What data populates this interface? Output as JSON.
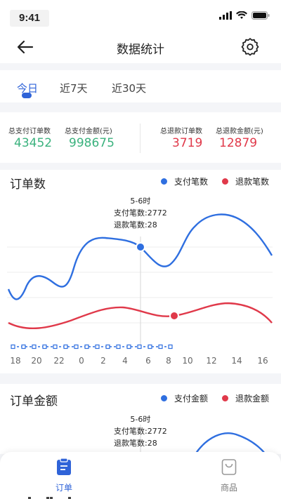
{
  "status_bar": {
    "time": "9:41"
  },
  "header": {
    "title": "数据统计"
  },
  "tabs": [
    {
      "label": "今日",
      "active": true
    },
    {
      "label": "近7天",
      "active": false
    },
    {
      "label": "近30天",
      "active": false
    }
  ],
  "summary": [
    {
      "label": "总支付订单数",
      "value": "43452",
      "color": "green"
    },
    {
      "label": "总支付金额(元)",
      "value": "998675",
      "color": "green"
    },
    {
      "label": "总退款订单数",
      "value": "3719",
      "color": "red"
    },
    {
      "label": "总退款金额(元)",
      "value": "12879",
      "color": "red"
    }
  ],
  "order_chart": {
    "title": "订单数",
    "legend": [
      {
        "label": "支付笔数",
        "color": "#2f6fe0"
      },
      {
        "label": "退款笔数",
        "color": "#e0394a"
      }
    ],
    "tooltip": {
      "time": "5-6时",
      "line1": "支付笔数:2772",
      "line2": "退款笔数:28"
    },
    "x_ticks": [
      "18",
      "20",
      "22",
      "0",
      "2",
      "4",
      "6",
      "8",
      "10",
      "12",
      "14",
      "16"
    ]
  },
  "amount_chart": {
    "title": "订单金额",
    "legend": [
      {
        "label": "支付金额",
        "color": "#2f6fe0"
      },
      {
        "label": "退款金额",
        "color": "#e0394a"
      }
    ],
    "tooltip": {
      "time": "5-6时",
      "line1": "支付笔数:2772",
      "line2": "退款笔数:28"
    }
  },
  "bottom_nav": [
    {
      "label": "订单",
      "active": true
    },
    {
      "label": "商品",
      "active": false
    }
  ]
}
